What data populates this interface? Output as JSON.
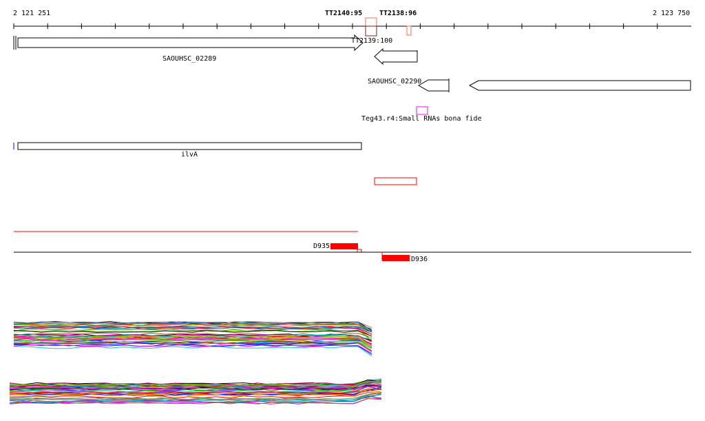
{
  "ruler": {
    "start": "2 121 251",
    "end": "2 123 750",
    "marker_a": "TT2140:95",
    "marker_b": "TT2138:96"
  },
  "features": {
    "tt2139": "TT2139:100",
    "gene1": "SAOUHSC_02289",
    "gene2": "SAOUHSC_02290",
    "srna": "Teg43.r4:Small RNAs bona fide",
    "ilva": "ilvA",
    "d935": "D935",
    "d936": "D936"
  },
  "colors": {
    "red": "#ff0000",
    "magenta": "#ff00ff",
    "blue": "#0000ff"
  }
}
